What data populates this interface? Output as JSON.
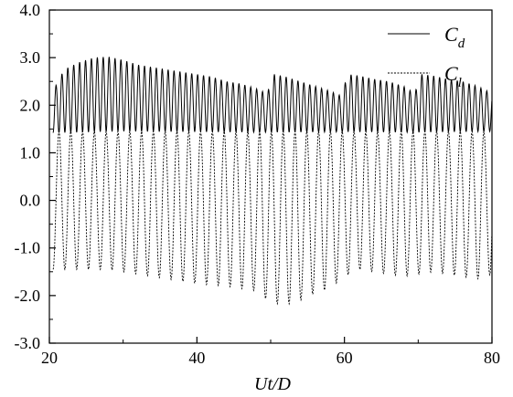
{
  "chart_data": {
    "type": "line",
    "xlabel": "Ut/D",
    "ylabel": "",
    "xlim": [
      20,
      80
    ],
    "ylim": [
      -3.0,
      4.0
    ],
    "x_ticks": [
      20,
      40,
      60,
      80
    ],
    "x_tick_labels": [
      "20",
      "40",
      "60",
      "80"
    ],
    "y_ticks": [
      -3.0,
      -2.0,
      -1.0,
      0.0,
      1.0,
      2.0,
      3.0,
      4.0
    ],
    "y_tick_labels": [
      "-3.0",
      "-2.0",
      "-1.0",
      "0.0",
      "1.0",
      "2.0",
      "3.0",
      "4.0"
    ],
    "grid": false,
    "legend_position": "top-right",
    "series": [
      {
        "name": "C",
        "subscript": "d",
        "style": "solid",
        "color": "#000000",
        "oscillation_period": 0.8,
        "t_start": 20.5,
        "min_envelope": {
          "t": [
            20.5,
            30,
            40,
            50,
            60,
            70,
            80
          ],
          "v": [
            1.42,
            1.45,
            1.44,
            1.43,
            1.44,
            1.43,
            1.45
          ]
        },
        "max_envelope": {
          "t": [
            20.5,
            22,
            24,
            26,
            28,
            30,
            32,
            34,
            36,
            38,
            40,
            42,
            44,
            46,
            48,
            49.5,
            50.5,
            52,
            54,
            56,
            58,
            59.5,
            60.5,
            62,
            64,
            66,
            68,
            69.5,
            70.5,
            72,
            74,
            76,
            78,
            80
          ],
          "v": [
            2.3,
            2.75,
            2.9,
            3.0,
            3.02,
            2.95,
            2.85,
            2.8,
            2.75,
            2.7,
            2.65,
            2.6,
            2.5,
            2.45,
            2.35,
            2.25,
            2.65,
            2.6,
            2.5,
            2.4,
            2.3,
            2.2,
            2.65,
            2.62,
            2.55,
            2.5,
            2.4,
            2.25,
            2.65,
            2.62,
            2.55,
            2.5,
            2.4,
            2.25
          ]
        }
      },
      {
        "name": "C",
        "subscript": "l",
        "style": "dashed",
        "color": "#000000",
        "oscillation_period": 1.6,
        "t_start": 20.5,
        "min_envelope": {
          "t": [
            20.5,
            24,
            28,
            32,
            36,
            40,
            44,
            48,
            50,
            52,
            54,
            56,
            58,
            60,
            62,
            64,
            66,
            68,
            70,
            72,
            74,
            76,
            78,
            80
          ],
          "v": [
            -1.45,
            -1.45,
            -1.45,
            -1.55,
            -1.65,
            -1.75,
            -1.8,
            -1.9,
            -2.15,
            -2.2,
            -2.1,
            -1.95,
            -1.85,
            -1.6,
            -1.45,
            -1.5,
            -1.55,
            -1.6,
            -1.55,
            -1.5,
            -1.55,
            -1.6,
            -1.65,
            -1.55
          ]
        },
        "max_envelope": {
          "t": [
            20.5,
            30,
            40,
            50,
            60,
            70,
            80
          ],
          "v": [
            1.45,
            1.45,
            1.45,
            1.45,
            1.45,
            1.45,
            1.45
          ]
        }
      }
    ]
  }
}
